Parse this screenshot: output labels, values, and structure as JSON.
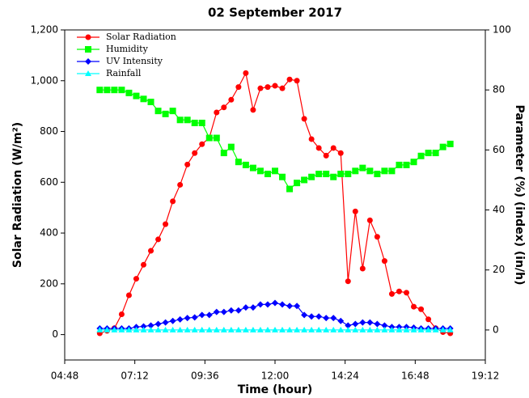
{
  "chart_data": {
    "type": "line",
    "title": "02 September 2017",
    "x_label": "Time (hour)",
    "y_label": "Solar Radiation (W/m²)",
    "y2_label": "Parameter (%) (index) (in/h)",
    "xlim": [
      288,
      1152
    ],
    "xticks": [
      {
        "value": 288,
        "label": "04:48"
      },
      {
        "value": 432,
        "label": "07:12"
      },
      {
        "value": 576,
        "label": "09:36"
      },
      {
        "value": 720,
        "label": "12:00"
      },
      {
        "value": 864,
        "label": "14:24"
      },
      {
        "value": 1008,
        "label": "16:48"
      },
      {
        "value": 1152,
        "label": "19:12"
      }
    ],
    "ylim": [
      -100,
      1200
    ],
    "yticks": [
      0,
      200,
      400,
      600,
      800,
      {
        "value": 1000,
        "label": "1,000"
      },
      {
        "value": 1200,
        "label": "1,200"
      }
    ],
    "y2lim": [
      -10,
      100
    ],
    "y2ticks": [
      0,
      20,
      40,
      60,
      80,
      100
    ],
    "legend": "upper left",
    "x": [
      360,
      375,
      390,
      405,
      420,
      435,
      450,
      465,
      480,
      495,
      510,
      525,
      540,
      555,
      570,
      585,
      600,
      615,
      630,
      645,
      660,
      675,
      690,
      705,
      720,
      735,
      750,
      765,
      780,
      795,
      810,
      825,
      840,
      855,
      870,
      885,
      900,
      915,
      930,
      945,
      960,
      975,
      990,
      1005,
      1020,
      1035,
      1050,
      1065,
      1080
    ],
    "series": [
      {
        "name": "Solar Radiation",
        "color": "#ff0000",
        "marker": "circle",
        "values": [
          5,
          15,
          25,
          80,
          155,
          220,
          275,
          330,
          375,
          435,
          525,
          590,
          670,
          715,
          750,
          775,
          875,
          895,
          925,
          975,
          1030,
          885,
          970,
          975,
          980,
          970,
          1005,
          1000,
          850,
          770,
          735,
          705,
          735,
          715,
          210,
          485,
          260,
          450,
          385,
          290,
          160,
          170,
          165,
          110,
          100,
          60,
          25,
          10,
          5
        ]
      },
      {
        "name": "Humidity",
        "color": "#00ff00",
        "marker": "square",
        "axis": "y2",
        "values": [
          80,
          80,
          80,
          80,
          79,
          78,
          77,
          76,
          73,
          72,
          73,
          70,
          70,
          69,
          69,
          64,
          64,
          59,
          61,
          56,
          55,
          54,
          53,
          52,
          53,
          51,
          47,
          49,
          50,
          51,
          52,
          52,
          51,
          52,
          52,
          53,
          54,
          53,
          52,
          53,
          53,
          55,
          55,
          56,
          58,
          59,
          59,
          61,
          62
        ]
      },
      {
        "name": "UV Intensity",
        "color": "#0000ff",
        "marker": "diamond",
        "axis": "y2",
        "values": [
          0.5,
          0.5,
          0.5,
          0.5,
          0.5,
          1,
          1.2,
          1.5,
          2,
          2.5,
          3,
          3.5,
          4,
          4.2,
          5,
          5,
          6,
          6,
          6.5,
          6.5,
          7.5,
          7.5,
          8.5,
          8.5,
          9,
          8.5,
          8,
          8,
          5,
          4.5,
          4.5,
          4,
          4,
          3,
          1.5,
          2,
          2.5,
          2.5,
          2,
          1.5,
          1,
          1,
          1,
          0.8,
          0.5,
          0.5,
          0.5,
          0.5,
          0.5
        ]
      },
      {
        "name": "Rainfall",
        "color": "#00ffff",
        "marker": "triangle",
        "axis": "y2",
        "values": [
          0,
          0,
          0,
          0,
          0,
          0,
          0,
          0,
          0,
          0,
          0,
          0,
          0,
          0,
          0,
          0,
          0,
          0,
          0,
          0,
          0,
          0,
          0,
          0,
          0,
          0,
          0,
          0,
          0,
          0,
          0,
          0,
          0,
          0,
          0,
          0,
          0,
          0,
          0,
          0,
          0,
          0,
          0,
          0,
          0,
          0,
          0,
          0,
          0
        ]
      }
    ]
  }
}
